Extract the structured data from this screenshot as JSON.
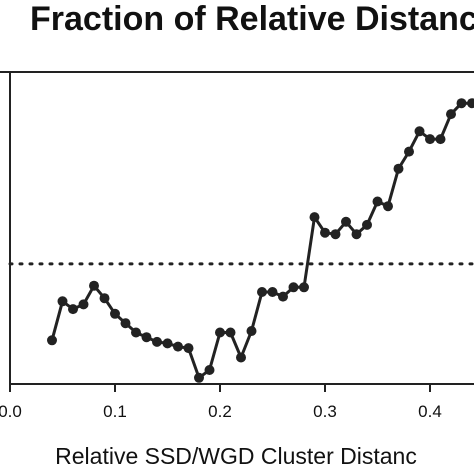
{
  "chart_data": {
    "type": "line",
    "title": "Fraction of Relative Distanc",
    "xlabel": "Relative SSD/WGD Cluster Distanc",
    "ylabel": "",
    "xlim": [
      0.0,
      0.45
    ],
    "x_ticks": [
      0.0,
      0.1,
      0.2,
      0.3,
      0.4
    ],
    "x_tick_labels": [
      "0.0",
      "0.1",
      "0.2",
      "0.3",
      "0.4"
    ],
    "ylim": [
      0.0,
      1.0
    ],
    "grid": false,
    "reference_line": {
      "style": "dotted",
      "y": 0.385
    },
    "series": [
      {
        "color": "#222222",
        "marker": "circle",
        "x": [
          0.04,
          0.05,
          0.06,
          0.07,
          0.08,
          0.09,
          0.1,
          0.11,
          0.12,
          0.13,
          0.14,
          0.15,
          0.16,
          0.17,
          0.18,
          0.19,
          0.2,
          0.21,
          0.22,
          0.23,
          0.24,
          0.25,
          0.26,
          0.27,
          0.28,
          0.29,
          0.3,
          0.31,
          0.32,
          0.33,
          0.34,
          0.35,
          0.36,
          0.37,
          0.38,
          0.39,
          0.4,
          0.41,
          0.42,
          0.43,
          0.44,
          0.45
        ],
        "y": [
          0.14,
          0.265,
          0.24,
          0.255,
          0.315,
          0.275,
          0.225,
          0.195,
          0.165,
          0.15,
          0.135,
          0.13,
          0.12,
          0.115,
          0.02,
          0.045,
          0.165,
          0.165,
          0.085,
          0.17,
          0.295,
          0.295,
          0.28,
          0.31,
          0.31,
          0.535,
          0.485,
          0.48,
          0.52,
          0.48,
          0.51,
          0.585,
          0.57,
          0.69,
          0.745,
          0.81,
          0.785,
          0.785,
          0.865,
          0.9,
          0.9,
          0.92
        ]
      }
    ]
  }
}
